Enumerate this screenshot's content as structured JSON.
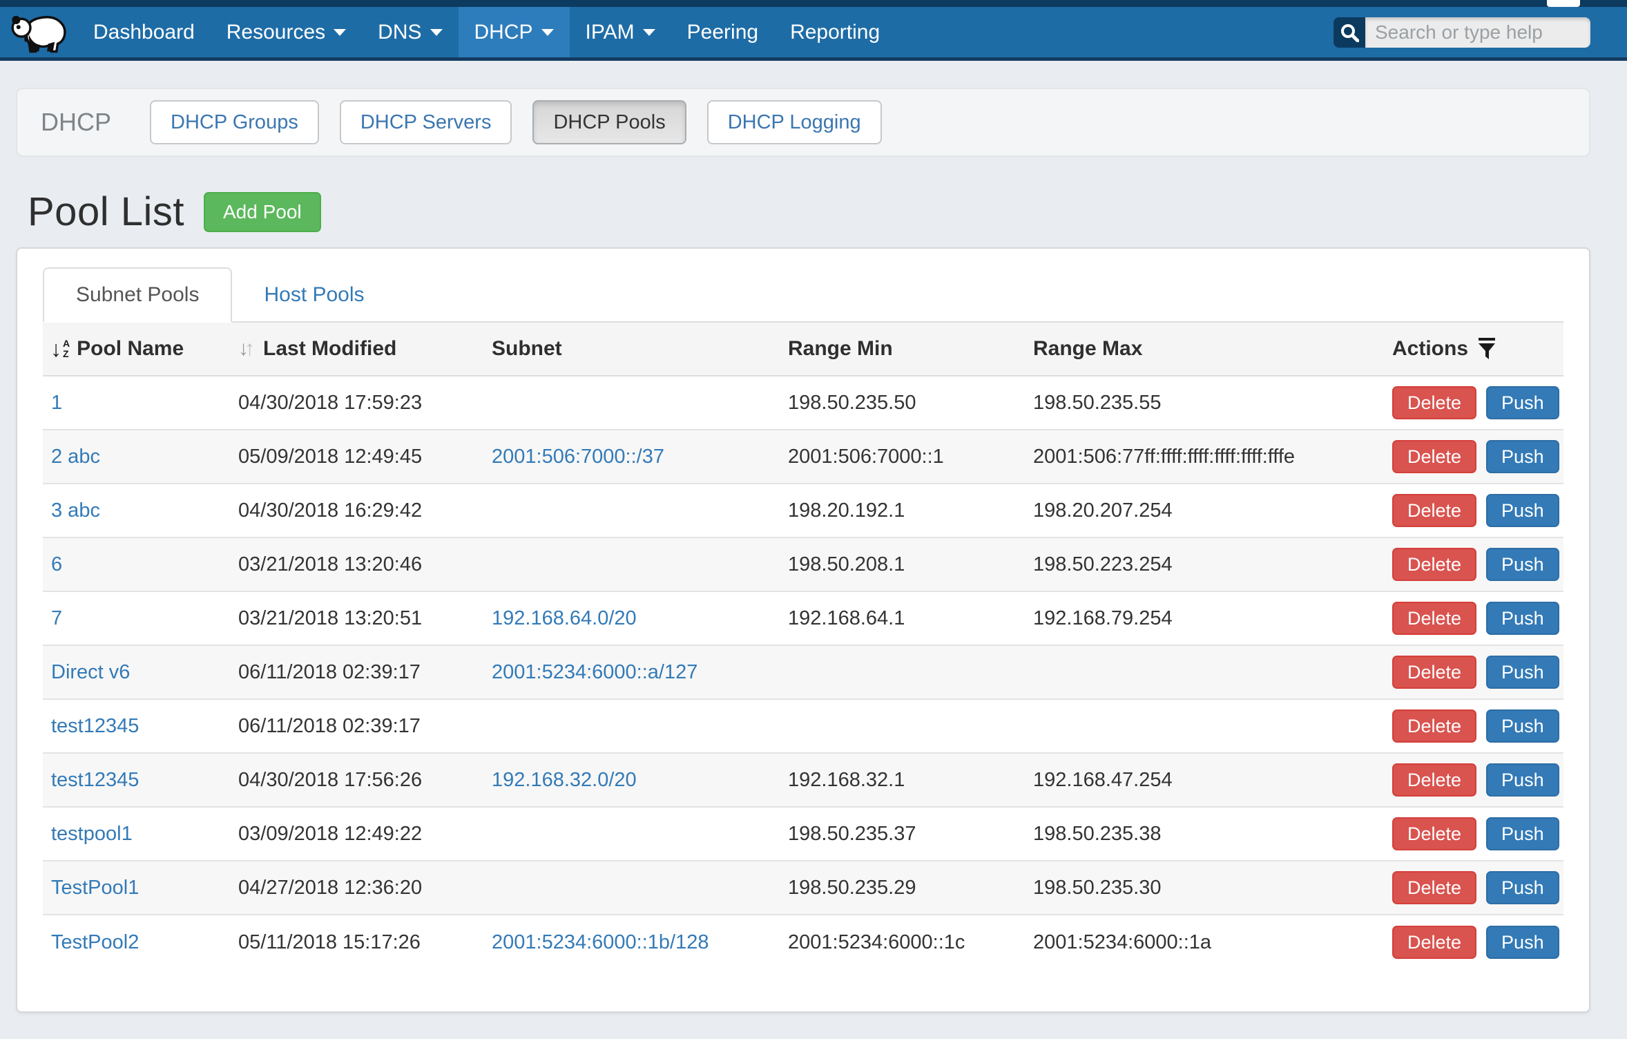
{
  "navbar": {
    "brand_icon": "panda-logo",
    "items": [
      {
        "label": "Dashboard",
        "has_dropdown": false,
        "active": false
      },
      {
        "label": "Resources",
        "has_dropdown": true,
        "active": false
      },
      {
        "label": "DNS",
        "has_dropdown": true,
        "active": false
      },
      {
        "label": "DHCP",
        "has_dropdown": true,
        "active": true
      },
      {
        "label": "IPAM",
        "has_dropdown": true,
        "active": false
      },
      {
        "label": "Peering",
        "has_dropdown": false,
        "active": false
      },
      {
        "label": "Reporting",
        "has_dropdown": false,
        "active": false
      }
    ],
    "search": {
      "placeholder": "Search or type help",
      "icon": "search-icon"
    }
  },
  "section_bar": {
    "title": "DHCP",
    "buttons": [
      {
        "label": "DHCP Groups",
        "active": false
      },
      {
        "label": "DHCP Servers",
        "active": false
      },
      {
        "label": "DHCP Pools",
        "active": true
      },
      {
        "label": "DHCP Logging",
        "active": false
      }
    ]
  },
  "page": {
    "title": "Pool List",
    "add_button_label": "Add Pool"
  },
  "tabs": [
    {
      "label": "Subnet Pools",
      "active": true
    },
    {
      "label": "Host Pools",
      "active": false
    }
  ],
  "table": {
    "columns": [
      "Pool Name",
      "Last Modified",
      "Subnet",
      "Range Min",
      "Range Max",
      "Actions"
    ],
    "header_icons": {
      "pool_name": "sort-alpha-desc-icon",
      "last_modified": "sort-updown-icon",
      "actions": "filter-funnel-icon"
    },
    "actions": [
      "Delete",
      "Push"
    ],
    "rows": [
      {
        "pool_name": "1",
        "last_modified": "04/30/2018 17:59:23",
        "subnet": "",
        "range_min": "198.50.235.50",
        "range_max": "198.50.235.55"
      },
      {
        "pool_name": "2 abc",
        "last_modified": "05/09/2018 12:49:45",
        "subnet": "2001:506:7000::/37",
        "range_min": "2001:506:7000::1",
        "range_max": "2001:506:77ff:ffff:ffff:ffff:ffff:fffe"
      },
      {
        "pool_name": "3 abc",
        "last_modified": "04/30/2018 16:29:42",
        "subnet": "",
        "range_min": "198.20.192.1",
        "range_max": "198.20.207.254"
      },
      {
        "pool_name": "6",
        "last_modified": "03/21/2018 13:20:46",
        "subnet": "",
        "range_min": "198.50.208.1",
        "range_max": "198.50.223.254"
      },
      {
        "pool_name": "7",
        "last_modified": "03/21/2018 13:20:51",
        "subnet": "192.168.64.0/20",
        "range_min": "192.168.64.1",
        "range_max": "192.168.79.254"
      },
      {
        "pool_name": "Direct v6",
        "last_modified": "06/11/2018 02:39:17",
        "subnet": "2001:5234:6000::a/127",
        "range_min": "",
        "range_max": ""
      },
      {
        "pool_name": "test12345",
        "last_modified": "06/11/2018 02:39:17",
        "subnet": "",
        "range_min": "",
        "range_max": ""
      },
      {
        "pool_name": "test12345",
        "last_modified": "04/30/2018 17:56:26",
        "subnet": "192.168.32.0/20",
        "range_min": "192.168.32.1",
        "range_max": "192.168.47.254"
      },
      {
        "pool_name": "testpool1",
        "last_modified": "03/09/2018 12:49:22",
        "subnet": "",
        "range_min": "198.50.235.37",
        "range_max": "198.50.235.38"
      },
      {
        "pool_name": "TestPool1",
        "last_modified": "04/27/2018 12:36:20",
        "subnet": "",
        "range_min": "198.50.235.29",
        "range_max": "198.50.235.30"
      },
      {
        "pool_name": "TestPool2",
        "last_modified": "05/11/2018 15:17:26",
        "subnet": "2001:5234:6000::1b/128",
        "range_min": "2001:5234:6000::1c",
        "range_max": "2001:5234:6000::1a"
      }
    ]
  },
  "colors": {
    "navbar": "#1e6ca6",
    "navbar_active_item": "#2d7dbc",
    "top_strip": "#0d3a5f",
    "link_blue": "#337ab7",
    "add_green": "#5cb85c",
    "delete_red": "#d9534f",
    "push_blue": "#337ab7",
    "page_bg": "#e9edf1"
  }
}
